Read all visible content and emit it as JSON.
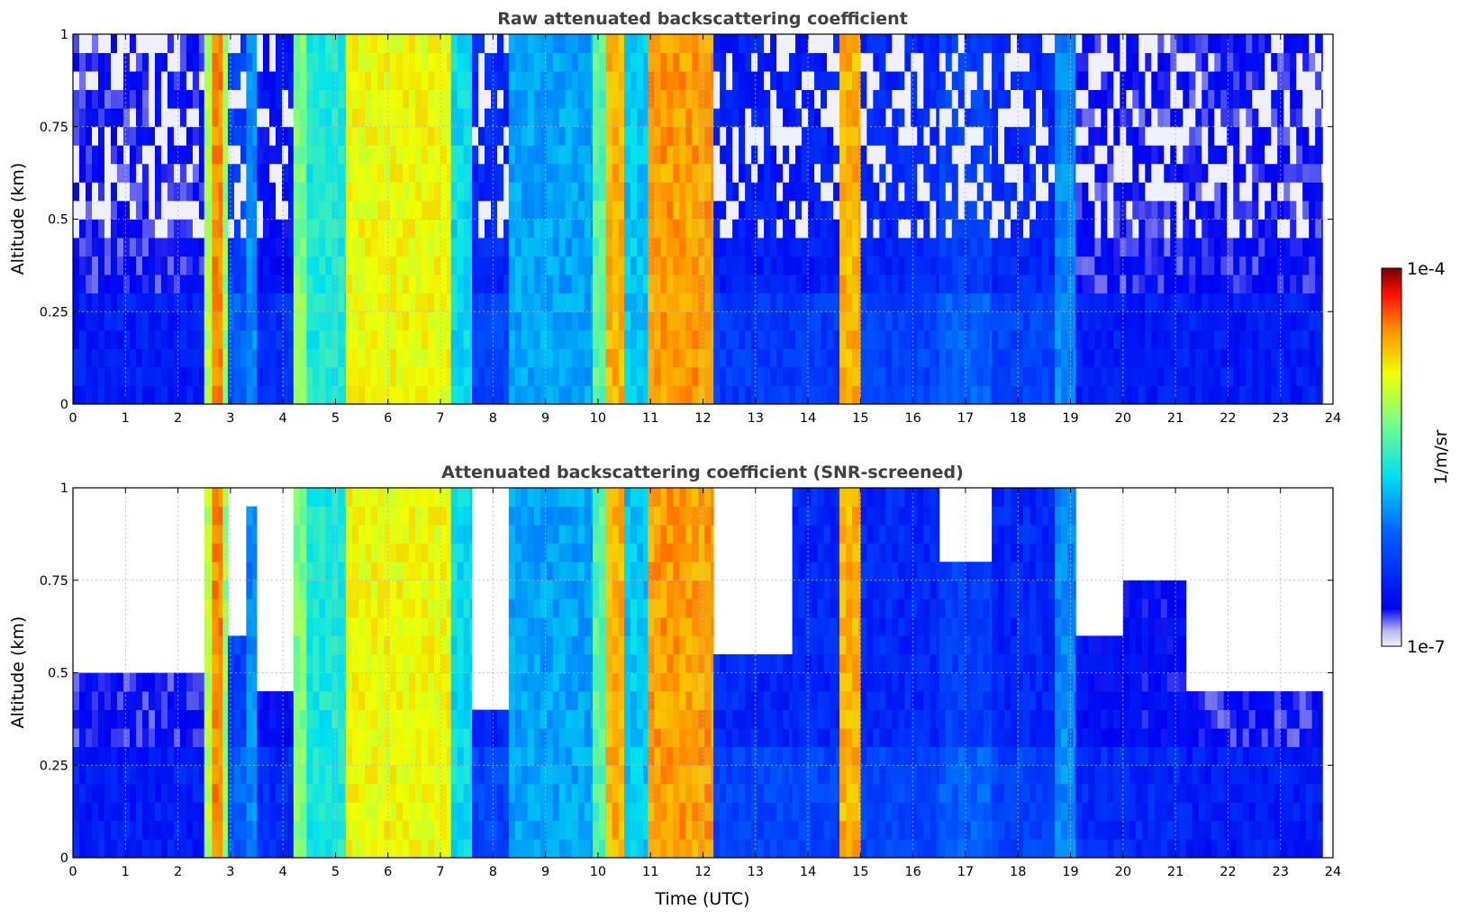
{
  "chart_data": [
    {
      "type": "heatmap",
      "title": "Raw attenuated backscattering coefficient",
      "xlabel": "",
      "ylabel": "Altitude (km)",
      "xlim": [
        0,
        24
      ],
      "ylim": [
        0,
        1
      ],
      "x_ticks": [
        "0",
        "1",
        "2",
        "3",
        "4",
        "5",
        "6",
        "7",
        "8",
        "9",
        "10",
        "11",
        "12",
        "13",
        "14",
        "15",
        "16",
        "17",
        "18",
        "19",
        "20",
        "21",
        "22",
        "23",
        "24"
      ],
      "y_ticks": [
        "0",
        "0.25",
        "0.5",
        "0.75",
        "1"
      ],
      "grid": true,
      "data_end_time": 23.8,
      "columns": [
        {
          "t0": 0.0,
          "t1": 2.5,
          "level": 0.12
        },
        {
          "t0": 2.5,
          "t1": 2.65,
          "level": 0.66
        },
        {
          "t0": 2.65,
          "t1": 2.85,
          "level": 0.84
        },
        {
          "t0": 2.85,
          "t1": 2.95,
          "level": 0.62
        },
        {
          "t0": 2.95,
          "t1": 3.3,
          "level": 0.25
        },
        {
          "t0": 3.3,
          "t1": 3.5,
          "level": 0.35
        },
        {
          "t0": 3.5,
          "t1": 4.2,
          "level": 0.15
        },
        {
          "t0": 4.2,
          "t1": 4.45,
          "level": 0.6
        },
        {
          "t0": 4.45,
          "t1": 5.2,
          "level": 0.48
        },
        {
          "t0": 5.2,
          "t1": 7.2,
          "level": 0.72
        },
        {
          "t0": 7.2,
          "t1": 7.6,
          "level": 0.45
        },
        {
          "t0": 7.6,
          "t1": 8.3,
          "level": 0.2
        },
        {
          "t0": 8.3,
          "t1": 9.9,
          "level": 0.38
        },
        {
          "t0": 9.9,
          "t1": 10.15,
          "level": 0.55
        },
        {
          "t0": 10.15,
          "t1": 10.5,
          "level": 0.8
        },
        {
          "t0": 10.5,
          "t1": 10.95,
          "level": 0.42
        },
        {
          "t0": 10.95,
          "t1": 12.2,
          "level": 0.82
        },
        {
          "t0": 12.2,
          "t1": 14.6,
          "level": 0.18
        },
        {
          "t0": 14.6,
          "t1": 15.0,
          "level": 0.8
        },
        {
          "t0": 15.0,
          "t1": 16.5,
          "level": 0.2
        },
        {
          "t0": 16.5,
          "t1": 17.5,
          "level": 0.25
        },
        {
          "t0": 17.5,
          "t1": 18.7,
          "level": 0.2
        },
        {
          "t0": 18.7,
          "t1": 19.1,
          "level": 0.35
        },
        {
          "t0": 19.1,
          "t1": 23.8,
          "level": 0.12
        }
      ]
    },
    {
      "type": "heatmap",
      "title": "Attenuated backscattering coefficient (SNR-screened)",
      "xlabel": "Time (UTC)",
      "ylabel": "Altitude (km)",
      "xlim": [
        0,
        24
      ],
      "ylim": [
        0,
        1
      ],
      "x_ticks": [
        "0",
        "1",
        "2",
        "3",
        "4",
        "5",
        "6",
        "7",
        "8",
        "9",
        "10",
        "11",
        "12",
        "13",
        "14",
        "15",
        "16",
        "17",
        "18",
        "19",
        "20",
        "21",
        "22",
        "23",
        "24"
      ],
      "y_ticks": [
        "0",
        "0.25",
        "0.5",
        "0.75",
        "1"
      ],
      "grid": true,
      "data_end_time": 23.8,
      "columns": [
        {
          "t0": 0.0,
          "t1": 2.5,
          "level": 0.12,
          "top": 0.5
        },
        {
          "t0": 2.5,
          "t1": 2.65,
          "level": 0.66,
          "top": 1.0
        },
        {
          "t0": 2.65,
          "t1": 2.85,
          "level": 0.84,
          "top": 1.0
        },
        {
          "t0": 2.85,
          "t1": 2.95,
          "level": 0.62,
          "top": 1.0
        },
        {
          "t0": 2.95,
          "t1": 3.3,
          "level": 0.25,
          "top": 0.6
        },
        {
          "t0": 3.3,
          "t1": 3.5,
          "level": 0.35,
          "top": 0.95
        },
        {
          "t0": 3.5,
          "t1": 4.2,
          "level": 0.15,
          "top": 0.45
        },
        {
          "t0": 4.2,
          "t1": 4.45,
          "level": 0.6,
          "top": 1.0
        },
        {
          "t0": 4.45,
          "t1": 5.2,
          "level": 0.48,
          "top": 1.0
        },
        {
          "t0": 5.2,
          "t1": 7.2,
          "level": 0.72,
          "top": 1.0
        },
        {
          "t0": 7.2,
          "t1": 7.6,
          "level": 0.45,
          "top": 1.0
        },
        {
          "t0": 7.6,
          "t1": 8.3,
          "level": 0.2,
          "top": 0.4
        },
        {
          "t0": 8.3,
          "t1": 9.9,
          "level": 0.38,
          "top": 1.0
        },
        {
          "t0": 9.9,
          "t1": 10.15,
          "level": 0.55,
          "top": 1.0
        },
        {
          "t0": 10.15,
          "t1": 10.5,
          "level": 0.8,
          "top": 1.0
        },
        {
          "t0": 10.5,
          "t1": 10.95,
          "level": 0.42,
          "top": 1.0
        },
        {
          "t0": 10.95,
          "t1": 12.2,
          "level": 0.82,
          "top": 1.0
        },
        {
          "t0": 12.2,
          "t1": 13.7,
          "level": 0.2,
          "top": 0.55
        },
        {
          "t0": 13.7,
          "t1": 14.6,
          "level": 0.2,
          "top": 1.0
        },
        {
          "t0": 14.6,
          "t1": 15.0,
          "level": 0.8,
          "top": 1.0
        },
        {
          "t0": 15.0,
          "t1": 16.5,
          "level": 0.2,
          "top": 1.0
        },
        {
          "t0": 16.5,
          "t1": 17.5,
          "level": 0.25,
          "top": 0.8
        },
        {
          "t0": 17.5,
          "t1": 18.7,
          "level": 0.2,
          "top": 1.0
        },
        {
          "t0": 18.7,
          "t1": 19.1,
          "level": 0.35,
          "top": 1.0
        },
        {
          "t0": 19.1,
          "t1": 20.0,
          "level": 0.15,
          "top": 0.6
        },
        {
          "t0": 20.0,
          "t1": 21.2,
          "level": 0.14,
          "top": 0.75
        },
        {
          "t0": 21.2,
          "t1": 23.8,
          "level": 0.12,
          "top": 0.45
        }
      ]
    }
  ],
  "colorbar": {
    "label": "1/m/sr",
    "min_label": "1e-7",
    "max_label": "1e-4",
    "colormap": "jet"
  }
}
